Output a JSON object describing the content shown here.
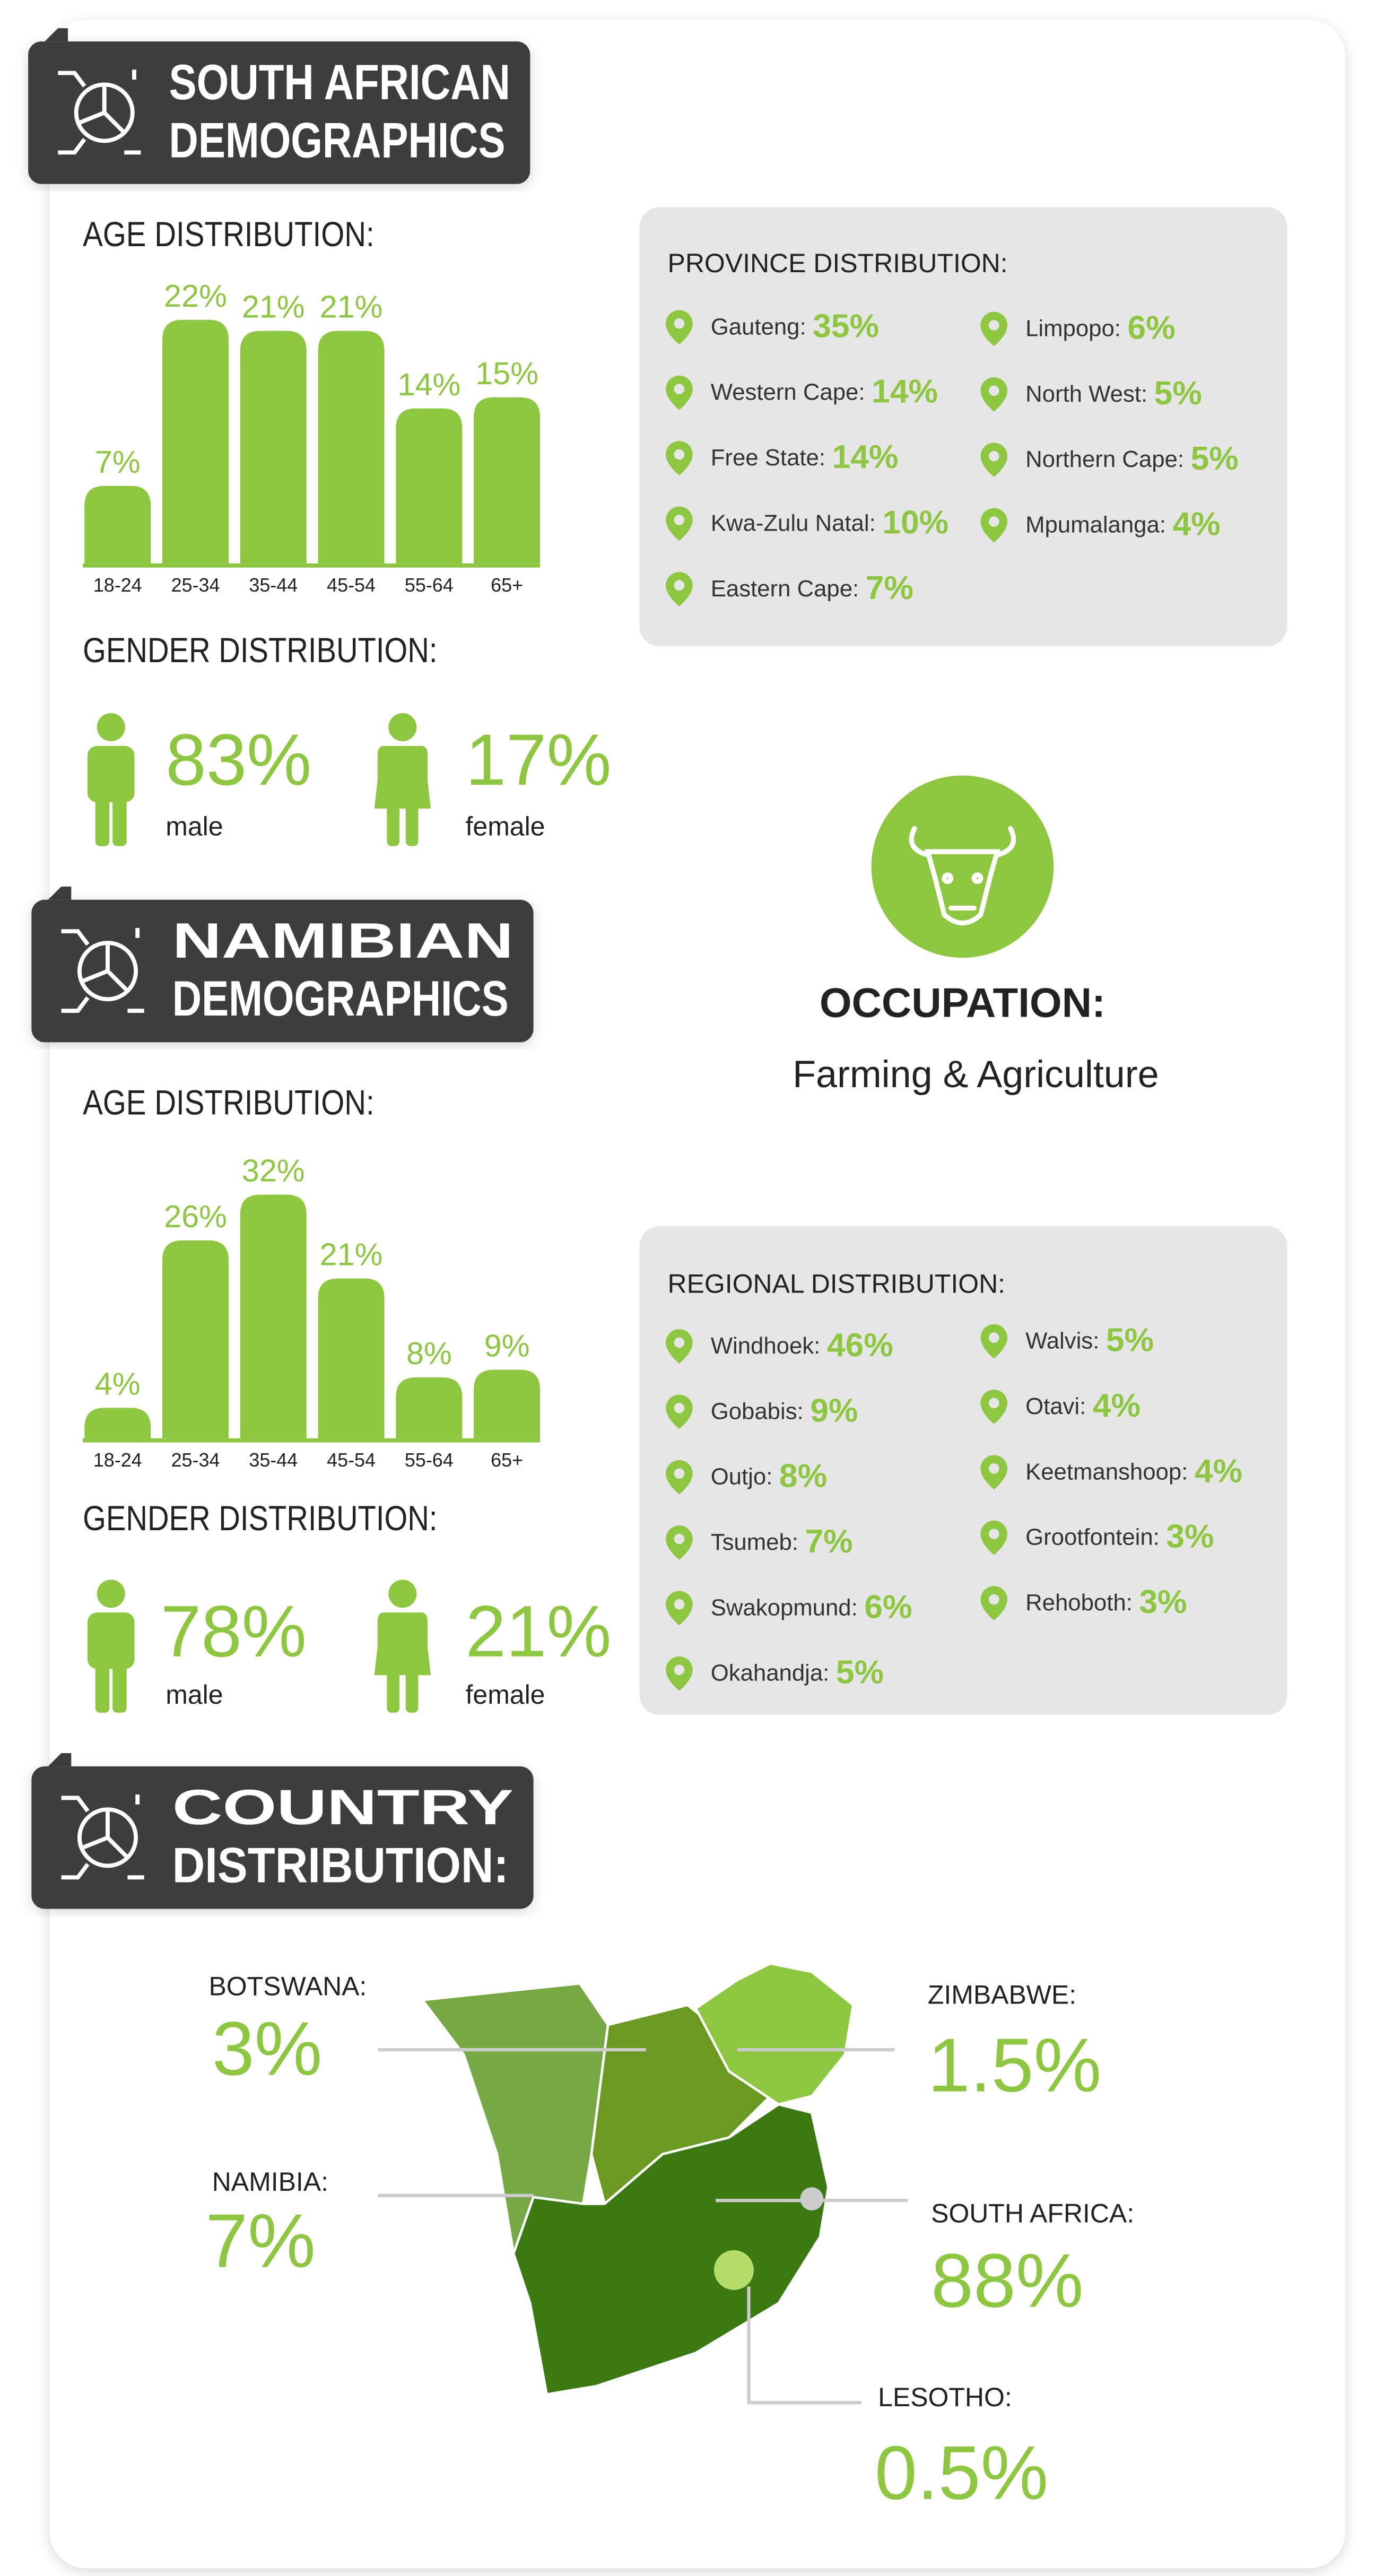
{
  "south_african": {
    "title_lines": [
      "SOUTH AFRICAN",
      "DEMOGRAPHICS"
    ],
    "age": {
      "title": "AGE DISTRIBUTION:",
      "categories": [
        "18-24",
        "25-34",
        "35-44",
        "45-54",
        "55-64",
        "65+"
      ],
      "values": [
        7,
        22,
        21,
        21,
        14,
        15
      ],
      "value_labels": [
        "7%",
        "22%",
        "21%",
        "21%",
        "14%",
        "15%"
      ],
      "color": "#8dc63f"
    },
    "gender": {
      "title": "GENDER DISTRIBUTION:",
      "items": [
        {
          "value": "83%",
          "label": "male"
        },
        {
          "value": "17%",
          "label": "female"
        }
      ]
    },
    "province": {
      "title": "PROVINCE DISTRIBUTION:",
      "columns": [
        [
          {
            "name": "Gauteng:",
            "value": "35%"
          },
          {
            "name": "Western Cape:",
            "value": "14%"
          },
          {
            "name": "Free State:",
            "value": "14%"
          },
          {
            "name": "Kwa-Zulu Natal:",
            "value": "10%"
          },
          {
            "name": "Eastern Cape:",
            "value": "7%"
          }
        ],
        [
          {
            "name": "Limpopo:",
            "value": "6%"
          },
          {
            "name": "North West:",
            "value": "5%"
          },
          {
            "name": "Northern Cape:",
            "value": "5%"
          },
          {
            "name": "Mpumalanga:",
            "value": "4%"
          }
        ]
      ]
    }
  },
  "occupation": {
    "title": "OCCUPATION:",
    "text": "Farming & Agriculture"
  },
  "namibian": {
    "title_lines": [
      "NAMIBIAN",
      "DEMOGRAPHICS"
    ],
    "age": {
      "title": "AGE DISTRIBUTION:",
      "categories": [
        "18-24",
        "25-34",
        "35-44",
        "45-54",
        "55-64",
        "65+"
      ],
      "values": [
        4,
        26,
        32,
        21,
        8,
        9
      ],
      "value_labels": [
        "4%",
        "26%",
        "32%",
        "21%",
        "8%",
        "9%"
      ],
      "color": "#8dc63f"
    },
    "gender": {
      "title": "GENDER DISTRIBUTION:",
      "items": [
        {
          "value": "78%",
          "label": "male"
        },
        {
          "value": "21%",
          "label": "female"
        }
      ]
    },
    "regional": {
      "title": "REGIONAL DISTRIBUTION:",
      "columns": [
        [
          {
            "name": "Windhoek:",
            "value": "46%"
          },
          {
            "name": "Gobabis:",
            "value": "9%"
          },
          {
            "name": "Outjo:",
            "value": "8%"
          },
          {
            "name": "Tsumeb:",
            "value": "7%"
          },
          {
            "name": "Swakopmund:",
            "value": "6%"
          },
          {
            "name": "Okahandja:",
            "value": "5%"
          }
        ],
        [
          {
            "name": "Walvis:",
            "value": "5%"
          },
          {
            "name": "Otavi:",
            "value": "4%"
          },
          {
            "name": "Keetmanshoop:",
            "value": "4%"
          },
          {
            "name": "Grootfontein:",
            "value": "3%"
          },
          {
            "name": "Rehoboth:",
            "value": "3%"
          }
        ]
      ]
    }
  },
  "country": {
    "title_lines": [
      "COUNTRY",
      "DISTRIBUTION:"
    ],
    "items": [
      {
        "name": "BOTSWANA:",
        "value": "3%"
      },
      {
        "name": "NAMIBIA:",
        "value": "7%"
      },
      {
        "name": "ZIMBABWE:",
        "value": "1.5%"
      },
      {
        "name": "SOUTH AFRICA:",
        "value": "88%"
      },
      {
        "name": "LESOTHO:",
        "value": "0.5%"
      }
    ]
  }
}
